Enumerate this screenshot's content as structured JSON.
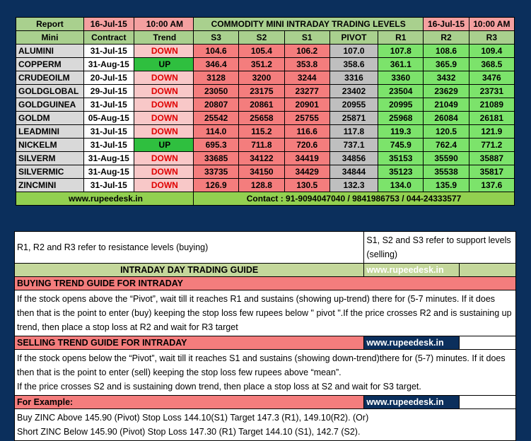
{
  "left_header": {
    "report_label": "Report",
    "date": "16-Jul-15",
    "time": "10:00 AM",
    "col_mini": "Mini",
    "col_contract": "Contract",
    "col_trend": "Trend"
  },
  "right_header": {
    "title": "COMMODITY MINI INTRADAY TRADING LEVELS",
    "date": "16-Jul-15",
    "time": "10:00 AM",
    "cols": [
      "S3",
      "S2",
      "S1",
      "PIVOT",
      "R1",
      "R2",
      "R3"
    ]
  },
  "rows": [
    {
      "name": "ALUMINI",
      "contract": "31-Jul-15",
      "trend": "DOWN",
      "s3": "104.6",
      "s2": "105.4",
      "s1": "106.2",
      "pivot": "107.0",
      "r1": "107.8",
      "r2": "108.6",
      "r3": "109.4"
    },
    {
      "name": "COPPERM",
      "contract": "31-Aug-15",
      "trend": "UP",
      "s3": "346.4",
      "s2": "351.2",
      "s1": "353.8",
      "pivot": "358.6",
      "r1": "361.1",
      "r2": "365.9",
      "r3": "368.5"
    },
    {
      "name": "CRUDEOILM",
      "contract": "20-Jul-15",
      "trend": "DOWN",
      "s3": "3128",
      "s2": "3200",
      "s1": "3244",
      "pivot": "3316",
      "r1": "3360",
      "r2": "3432",
      "r3": "3476"
    },
    {
      "name": "GOLDGLOBAL",
      "contract": "29-Jul-15",
      "trend": "DOWN",
      "s3": "23050",
      "s2": "23175",
      "s1": "23277",
      "pivot": "23402",
      "r1": "23504",
      "r2": "23629",
      "r3": "23731"
    },
    {
      "name": "GOLDGUINEA",
      "contract": "31-Jul-15",
      "trend": "DOWN",
      "s3": "20807",
      "s2": "20861",
      "s1": "20901",
      "pivot": "20955",
      "r1": "20995",
      "r2": "21049",
      "r3": "21089"
    },
    {
      "name": "GOLDM",
      "contract": "05-Aug-15",
      "trend": "DOWN",
      "s3": "25542",
      "s2": "25658",
      "s1": "25755",
      "pivot": "25871",
      "r1": "25968",
      "r2": "26084",
      "r3": "26181"
    },
    {
      "name": "LEADMINI",
      "contract": "31-Jul-15",
      "trend": "DOWN",
      "s3": "114.0",
      "s2": "115.2",
      "s1": "116.6",
      "pivot": "117.8",
      "r1": "119.3",
      "r2": "120.5",
      "r3": "121.9"
    },
    {
      "name": "NICKELM",
      "contract": "31-Jul-15",
      "trend": "UP",
      "s3": "695.3",
      "s2": "711.8",
      "s1": "720.6",
      "pivot": "737.1",
      "r1": "745.9",
      "r2": "762.4",
      "r3": "771.2"
    },
    {
      "name": "SILVERM",
      "contract": "31-Aug-15",
      "trend": "DOWN",
      "s3": "33685",
      "s2": "34122",
      "s1": "34419",
      "pivot": "34856",
      "r1": "35153",
      "r2": "35590",
      "r3": "35887"
    },
    {
      "name": "SILVERMIC",
      "contract": "31-Aug-15",
      "trend": "DOWN",
      "s3": "33735",
      "s2": "34150",
      "s1": "34429",
      "pivot": "34844",
      "r1": "35123",
      "r2": "35538",
      "r3": "35817"
    },
    {
      "name": "ZINCMINI",
      "contract": "31-Jul-15",
      "trend": "DOWN",
      "s3": "126.9",
      "s2": "128.8",
      "s1": "130.5",
      "pivot": "132.3",
      "r1": "134.0",
      "r2": "135.9",
      "r3": "137.6"
    }
  ],
  "footer": {
    "site": "www.rupeedesk.in",
    "contact": "Contact : 91-9094047040 / 9841986753 / 044-24333577"
  },
  "guide": {
    "resistance_note": "R1, R2 and R3 refer to resistance levels (buying)",
    "support_note": "S1, S2 and S3 refer to support levels (selling)",
    "title": "INTRADAY DAY TRADING GUIDE",
    "site": "www.rupeedesk.in",
    "buying_title": "BUYING TREND GUIDE FOR INTRADAY",
    "buying_text": "If the stock opens above the “Pivot”, wait till it reaches R1 and sustains (showing up-trend) there for (5-7 minutes. If it does then that is the point to enter (buy) keeping the stop loss few rupees below \" pivot \".If the price crosses R2 and is sustaining up trend, then place a stop loss at R2 and wait for R3 target",
    "selling_title": "SELLING TREND GUIDE FOR INTRADAY",
    "selling_text_1": "If the stock opens below the “Pivot”, wait till it reaches S1 and sustains (showing down-trend)there for (5-7) minutes. If it does then that is the point to enter (sell) keeping the stop loss few rupees above “mean”.",
    "selling_text_2": " If the price crosses S2 and is sustaining down trend, then place a stop loss at S2 and wait for S3 target.",
    "example_title": "For Example:",
    "example_1": "Buy ZINC Above 145.90 (Pivot) Stop Loss 144.10(S1) Target 147.3 (R1), 149.10(R2). (Or)",
    "example_2": "Short ZINC Below 145.90 (Pivot) Stop Loss 147.30 (R1) Target 144.10 (S1), 142.7 (S2)."
  }
}
